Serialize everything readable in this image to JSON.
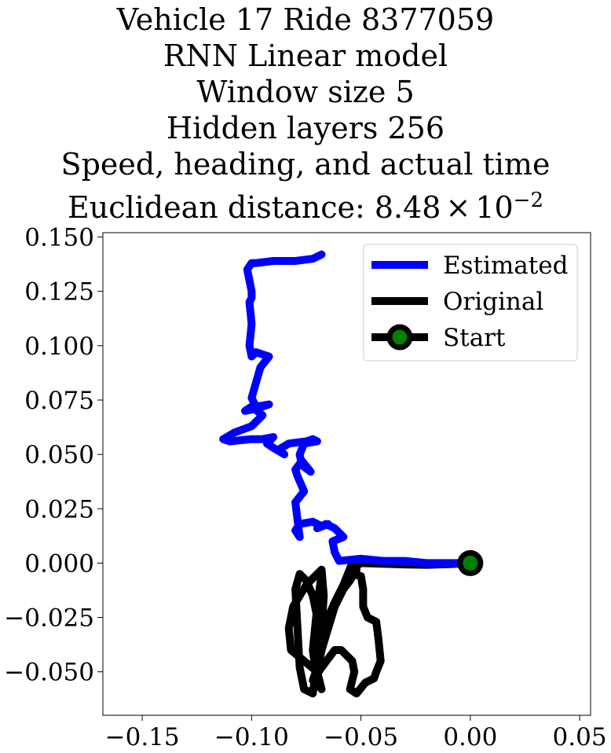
{
  "chart_data": {
    "type": "line",
    "title_lines": [
      "Vehicle 17 Ride 8377059",
      "RNN Linear model",
      "Window size 5",
      "Hidden layers 256",
      "Speed, heading, and actual time"
    ],
    "title_metric": {
      "prefix": "Euclidean distance: ",
      "mantissa": "8.48",
      "times": "×",
      "base": "10",
      "exponent": "−2"
    },
    "xlabel": "",
    "ylabel": "",
    "xlim": [
      -0.168,
      0.055
    ],
    "ylim": [
      -0.07,
      0.152
    ],
    "x_ticks": [
      {
        "value": -0.15,
        "label": "−0.15"
      },
      {
        "value": -0.1,
        "label": "−0.10"
      },
      {
        "value": -0.05,
        "label": "−0.05"
      },
      {
        "value": 0.0,
        "label": "0.00"
      },
      {
        "value": 0.05,
        "label": "0.05"
      }
    ],
    "y_ticks": [
      {
        "value": 0.15,
        "label": "0.150"
      },
      {
        "value": 0.125,
        "label": "0.125"
      },
      {
        "value": 0.1,
        "label": "0.100"
      },
      {
        "value": 0.075,
        "label": "0.075"
      },
      {
        "value": 0.05,
        "label": "0.050"
      },
      {
        "value": 0.025,
        "label": "0.025"
      },
      {
        "value": 0.0,
        "label": "0.000"
      },
      {
        "value": -0.025,
        "label": "−0.025"
      },
      {
        "value": -0.05,
        "label": "−0.050"
      }
    ],
    "grid": false,
    "legend": {
      "placement": "top-right",
      "entries": [
        {
          "label": "Estimated",
          "color": "#0000ff",
          "marker": false
        },
        {
          "label": "Original",
          "color": "#000000",
          "marker": false
        },
        {
          "label": "Start",
          "color": "#000000",
          "marker": true,
          "marker_face": "#008000"
        }
      ]
    },
    "series": [
      {
        "name": "Estimated",
        "color": "#0000ff",
        "x": [
          0.0,
          -0.01,
          -0.02,
          -0.03,
          -0.04,
          -0.05,
          -0.06,
          -0.062,
          -0.063,
          -0.058,
          -0.062,
          -0.066,
          -0.07,
          -0.065,
          -0.068,
          -0.072,
          -0.078,
          -0.08,
          -0.078,
          -0.079,
          -0.08,
          -0.076,
          -0.079,
          -0.08,
          -0.077,
          -0.073,
          -0.077,
          -0.078,
          -0.076,
          -0.07,
          -0.072,
          -0.075,
          -0.083,
          -0.088,
          -0.085,
          -0.09,
          -0.093,
          -0.09,
          -0.095,
          -0.1,
          -0.11,
          -0.113,
          -0.108,
          -0.1,
          -0.095,
          -0.1,
          -0.103,
          -0.098,
          -0.092,
          -0.098,
          -0.1,
          -0.096,
          -0.092,
          -0.098,
          -0.1,
          -0.101,
          -0.1,
          -0.101,
          -0.1,
          -0.1,
          -0.101,
          -0.102,
          -0.1,
          -0.098,
          -0.09,
          -0.08,
          -0.072,
          -0.068
        ],
        "y": [
          0.0,
          0.0,
          0.0,
          0.001,
          0.001,
          0.002,
          0.001,
          0.005,
          0.01,
          0.012,
          0.016,
          0.018,
          0.016,
          0.018,
          0.017,
          0.019,
          0.018,
          0.015,
          0.012,
          0.02,
          0.028,
          0.033,
          0.04,
          0.043,
          0.047,
          0.042,
          0.045,
          0.05,
          0.055,
          0.056,
          0.057,
          0.056,
          0.055,
          0.052,
          0.05,
          0.053,
          0.055,
          0.058,
          0.057,
          0.057,
          0.056,
          0.057,
          0.06,
          0.063,
          0.068,
          0.072,
          0.07,
          0.071,
          0.073,
          0.072,
          0.076,
          0.09,
          0.095,
          0.097,
          0.095,
          0.1,
          0.11,
          0.12,
          0.122,
          0.125,
          0.13,
          0.135,
          0.138,
          0.138,
          0.139,
          0.139,
          0.14,
          0.142
        ]
      },
      {
        "name": "Original",
        "color": "#000000",
        "x": [
          0.0,
          -0.01,
          -0.02,
          -0.03,
          -0.04,
          -0.05,
          -0.055,
          -0.054,
          -0.05,
          -0.049,
          -0.049,
          -0.047,
          -0.043,
          -0.042,
          -0.041,
          -0.043,
          -0.044,
          -0.048,
          -0.052,
          -0.055,
          -0.053,
          -0.054,
          -0.057,
          -0.059,
          -0.062,
          -0.068,
          -0.072,
          -0.069,
          -0.068,
          -0.062,
          -0.058,
          -0.055,
          -0.052,
          -0.053,
          -0.054,
          -0.058,
          -0.062,
          -0.065,
          -0.066,
          -0.07,
          -0.072,
          -0.075,
          -0.078,
          -0.08,
          -0.079,
          -0.078,
          -0.076,
          -0.072,
          -0.07,
          -0.068,
          -0.067,
          -0.068,
          -0.075,
          -0.081,
          -0.083,
          -0.082,
          -0.076,
          -0.07,
          -0.068,
          -0.07,
          -0.072,
          -0.07,
          -0.068
        ],
        "y": [
          0.0,
          -0.0005,
          -0.0008,
          -0.0006,
          -0.0003,
          0.0,
          -0.003,
          -0.005,
          -0.006,
          -0.012,
          -0.02,
          -0.025,
          -0.027,
          -0.035,
          -0.045,
          -0.05,
          -0.053,
          -0.055,
          -0.06,
          -0.058,
          -0.05,
          -0.045,
          -0.042,
          -0.04,
          -0.04,
          -0.048,
          -0.054,
          -0.045,
          -0.04,
          -0.02,
          -0.012,
          -0.008,
          -0.003,
          0.0,
          0.0,
          -0.01,
          -0.018,
          -0.025,
          -0.03,
          -0.025,
          -0.015,
          -0.008,
          -0.005,
          -0.012,
          -0.03,
          -0.048,
          -0.058,
          -0.06,
          -0.045,
          -0.03,
          -0.015,
          -0.003,
          -0.01,
          -0.02,
          -0.03,
          -0.04,
          -0.045,
          -0.05,
          -0.058,
          -0.055,
          -0.04,
          -0.02,
          -0.005
        ]
      }
    ],
    "start_point": {
      "name": "Start",
      "x": 0.0,
      "y": 0.0,
      "edge_color": "#000000",
      "face_color": "#008000"
    }
  }
}
